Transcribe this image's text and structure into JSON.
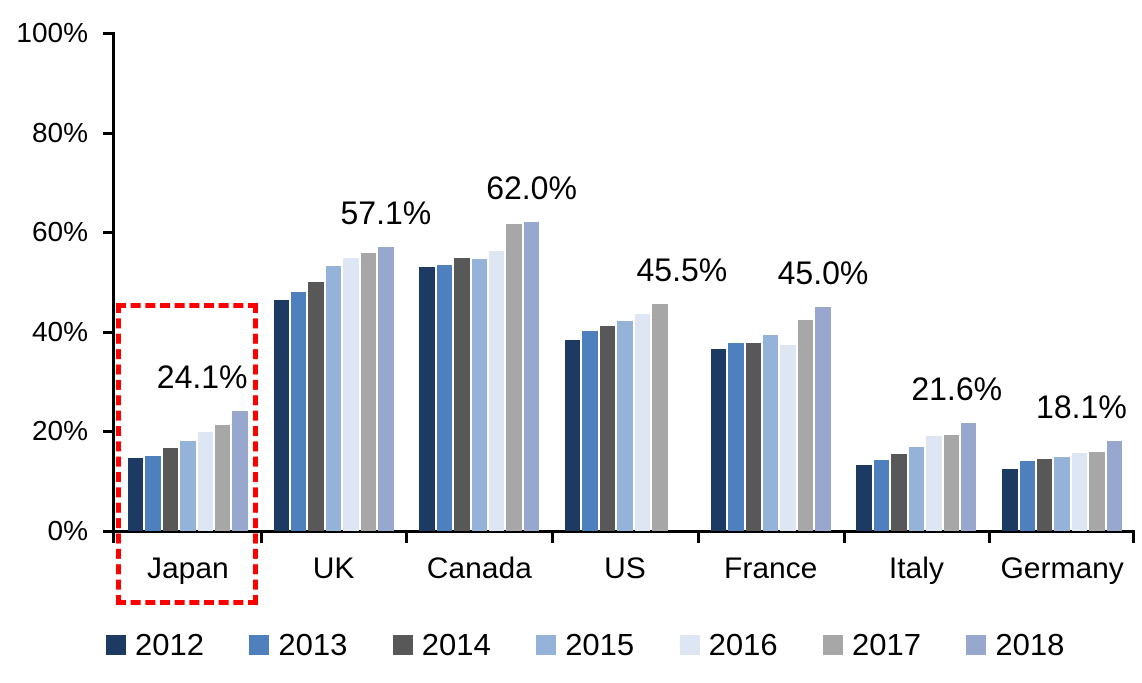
{
  "chart_data": {
    "type": "bar",
    "title": "",
    "categories": [
      "Japan",
      "UK",
      "Canada",
      "US",
      "France",
      "Italy",
      "Germany"
    ],
    "series": [
      {
        "name": "2012",
        "color": "#1D3A63",
        "values": [
          14.7,
          46.4,
          53.1,
          38.3,
          36.6,
          13.3,
          12.5
        ]
      },
      {
        "name": "2013",
        "color": "#4E80BD",
        "values": [
          15.1,
          47.9,
          53.4,
          40.2,
          37.8,
          14.2,
          14.1
        ]
      },
      {
        "name": "2014",
        "color": "#585858",
        "values": [
          16.6,
          49.9,
          54.9,
          41.1,
          37.8,
          15.5,
          14.5
        ]
      },
      {
        "name": "2015",
        "color": "#95B2D9",
        "values": [
          18.1,
          53.3,
          54.6,
          42.2,
          39.4,
          16.9,
          14.9
        ]
      },
      {
        "name": "2016",
        "color": "#DDE6F2",
        "values": [
          19.9,
          54.8,
          56.2,
          43.6,
          37.4,
          19.0,
          15.7
        ]
      },
      {
        "name": "2017",
        "color": "#A7A7A7",
        "values": [
          21.2,
          55.8,
          61.6,
          45.5,
          42.4,
          19.2,
          15.9
        ]
      },
      {
        "name": "2018",
        "color": "#97A7CE",
        "values": [
          24.1,
          57.1,
          62.0,
          null,
          45.0,
          21.6,
          18.1
        ]
      }
    ],
    "y_axis": {
      "min": 0,
      "max": 100,
      "ticks": [
        "0%",
        "20%",
        "40%",
        "60%",
        "80%",
        "100%"
      ]
    },
    "annotations": [
      {
        "category": "Japan",
        "text": "24.1%",
        "dx": -38
      },
      {
        "category": "UK",
        "text": "57.1%",
        "dx": 0
      },
      {
        "category": "Canada",
        "text": "62.0%",
        "dx": 0
      },
      {
        "category": "US",
        "text": "45.5%",
        "dx": 22
      },
      {
        "category": "France",
        "text": "45.0%",
        "dx": 0
      },
      {
        "category": "Italy",
        "text": "21.6%",
        "dx": -12
      },
      {
        "category": "Germany",
        "text": "18.1%",
        "dx": -33
      }
    ],
    "legend": {
      "position": "bottom",
      "entries": [
        "2012",
        "2013",
        "2014",
        "2015",
        "2016",
        "2017",
        "2018"
      ]
    },
    "highlight": {
      "category": "Japan",
      "style": "dashed-rectangle",
      "color": "#FF0000"
    },
    "grid": false,
    "background": "#FFFFFF",
    "axis_color": "#000000"
  }
}
